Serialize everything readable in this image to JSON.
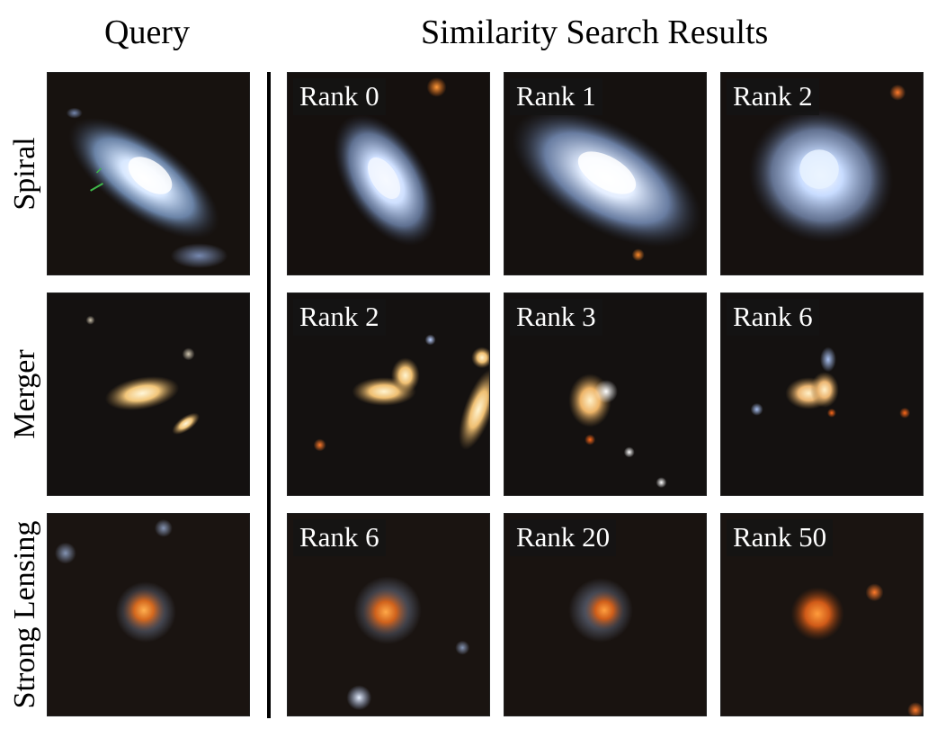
{
  "headers": {
    "query": "Query",
    "results": "Similarity Search Results"
  },
  "rows": [
    {
      "label": "Spiral",
      "query_desc": "spiral galaxy",
      "results": [
        {
          "rank": "Rank 0"
        },
        {
          "rank": "Rank 1"
        },
        {
          "rank": "Rank 2"
        }
      ]
    },
    {
      "label": "Merger",
      "query_desc": "merging galaxies",
      "results": [
        {
          "rank": "Rank 2"
        },
        {
          "rank": "Rank 3"
        },
        {
          "rank": "Rank 6"
        }
      ]
    },
    {
      "label": "Strong Lensing",
      "query_desc": "strong gravitational lens",
      "results": [
        {
          "rank": "Rank 6"
        },
        {
          "rank": "Rank 20"
        },
        {
          "rank": "Rank 50"
        }
      ]
    }
  ],
  "colors": {
    "sky": "#16110f",
    "spiral_core": "#eef6ff",
    "spiral_halo": "#8fb0d8",
    "merger_core": "#ffe9b8",
    "lens_core": "#e8822e",
    "lens_arc": "#8ea4c8"
  }
}
